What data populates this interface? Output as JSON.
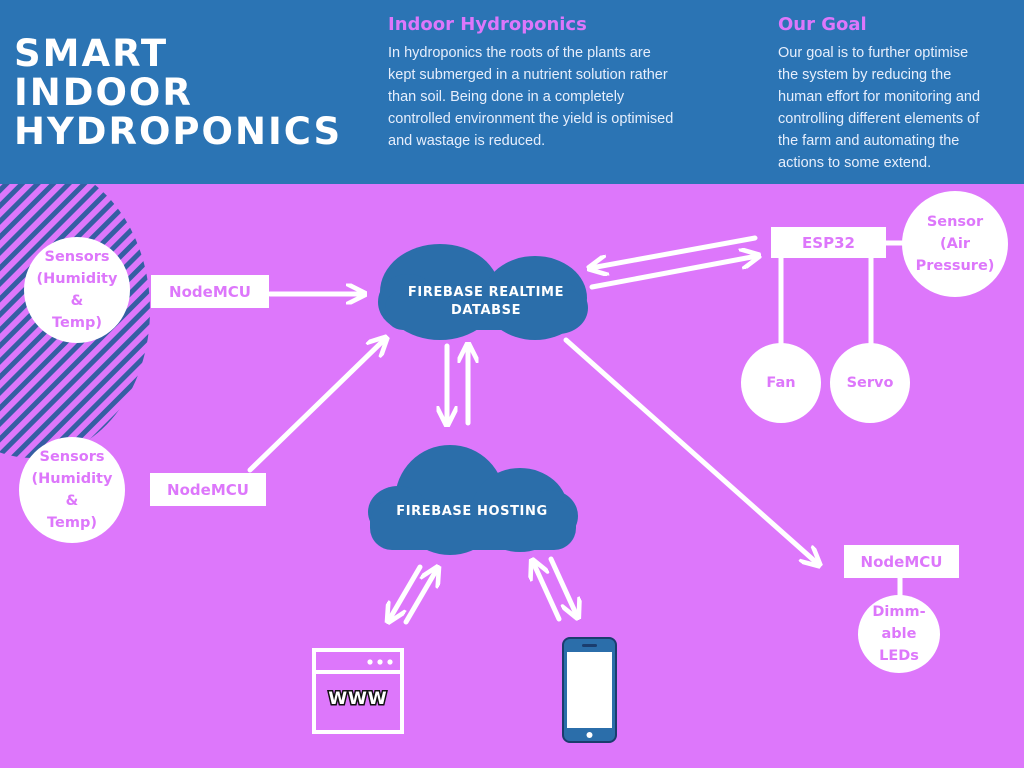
{
  "title": {
    "line1": "SMART",
    "line2": "INDOOR",
    "line3": "HYDROPONICS"
  },
  "section_hydroponics": {
    "heading": "Indoor Hydroponics",
    "lines": [
      "In hydroponics the roots of the plants are",
      "kept submerged in a nutrient solution rather",
      "than soil. Being done in a completely",
      "controlled environment the yield is optimised",
      "and wastage is reduced."
    ]
  },
  "section_goal": {
    "heading": "Our Goal",
    "lines": [
      "Our goal is to further optimise",
      "the system by reducing the",
      "human effort for monitoring and",
      "controlling different elements of",
      "the farm and automating the",
      "actions to some extend."
    ]
  },
  "nodes": {
    "sensors_top": [
      "Sensors",
      "(Humidity",
      "&",
      "Temp)"
    ],
    "sensors_bottom": [
      "Sensors",
      "(Humidity",
      "&",
      "Temp)"
    ],
    "nodemcu_top": "NodeMCU",
    "nodemcu_bottom": "NodeMCU",
    "realtime_db": [
      "FIREBASE REALTIME",
      "DATABSE"
    ],
    "hosting": "FIREBASE HOSTING",
    "esp32": "ESP32",
    "sensor_air": [
      "Sensor",
      "(Air",
      "Pressure)"
    ],
    "fan": "Fan",
    "servo": "Servo",
    "nodemcu_right": "NodeMCU",
    "dimmable_leds": [
      "Dimm-",
      "able",
      "LEDs"
    ],
    "www_label": "WWW"
  },
  "icons": {
    "browser": "browser-window-icon",
    "phone": "smartphone-icon"
  },
  "colors": {
    "header_blue": "#2b74b4",
    "background_purple": "#dd77fb",
    "cloud_blue": "#2b6eaa",
    "text_white": "#ffffff"
  }
}
